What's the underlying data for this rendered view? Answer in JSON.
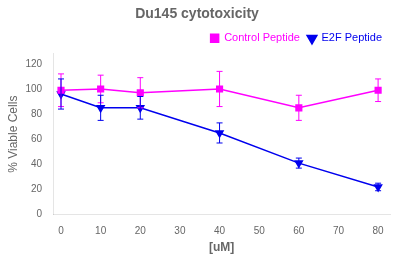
{
  "chart_data": {
    "type": "line",
    "title": "Du145 cytotoxicity",
    "xlabel": "[uM]",
    "ylabel": "% Viable Cells",
    "x": [
      0,
      10,
      20,
      40,
      60,
      80
    ],
    "series": [
      {
        "name": "Control Peptide",
        "color": "#FF00FF",
        "marker": "square",
        "values": [
          99,
          100,
          97,
          100,
          85,
          99
        ],
        "yerr": [
          13,
          11,
          12,
          14,
          10,
          9
        ]
      },
      {
        "name": "E2F Peptide",
        "color": "#0000EE",
        "marker": "triangle_down",
        "values": [
          96,
          85,
          85,
          65,
          41,
          22
        ],
        "yerr": [
          12,
          10,
          9,
          8,
          4,
          3
        ]
      }
    ],
    "xlim": [
      -2,
      83
    ],
    "ylim": [
      0,
      128
    ],
    "xticks": [
      0,
      10,
      20,
      30,
      40,
      50,
      60,
      70,
      80
    ],
    "yticks": [
      0,
      20,
      40,
      60,
      80,
      100,
      120
    ],
    "grid": false,
    "legend": "upper right"
  }
}
